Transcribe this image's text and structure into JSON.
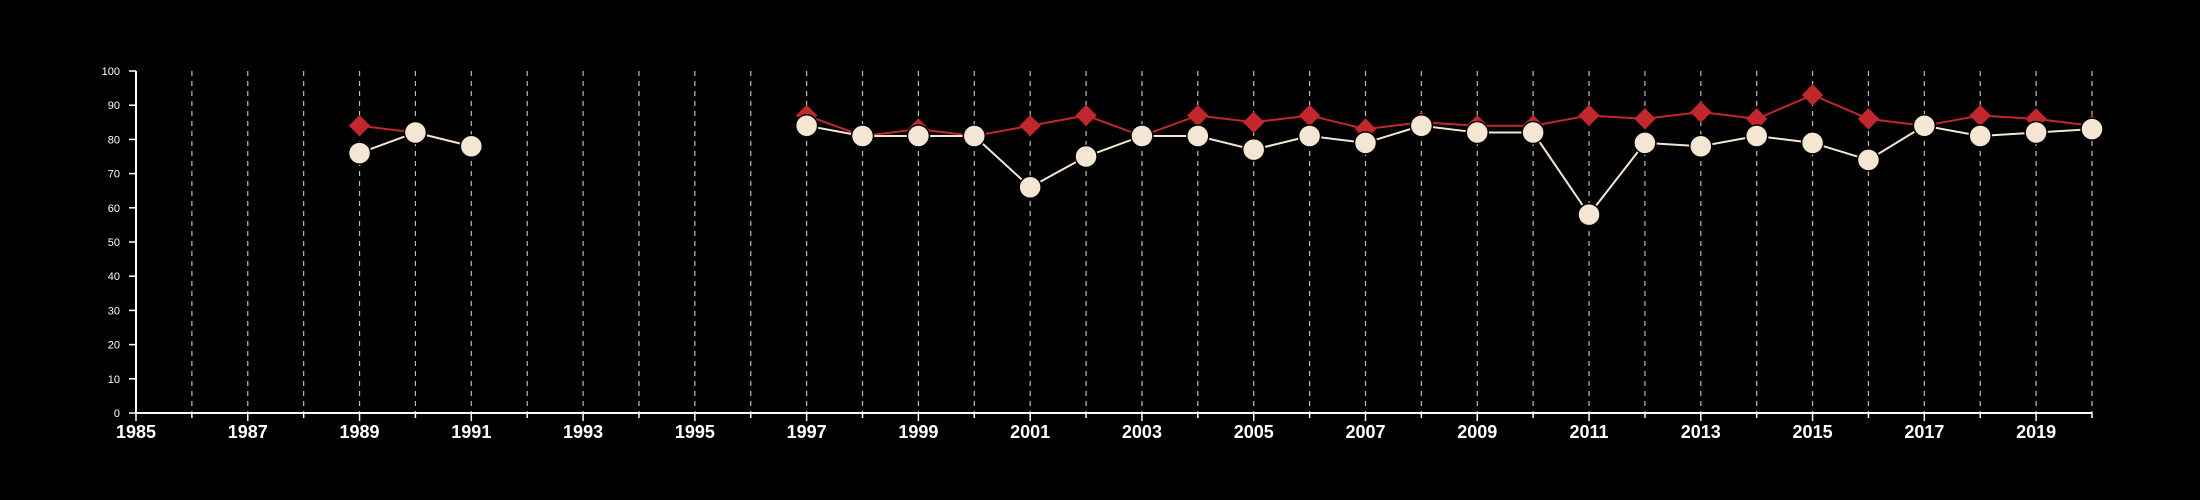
{
  "chart_data": {
    "type": "line",
    "title": "",
    "xlabel": "",
    "ylabel": "",
    "xlim": [
      1985,
      2020
    ],
    "ylim": [
      0,
      100
    ],
    "y_ticks": [
      0,
      10,
      20,
      30,
      40,
      50,
      60,
      70,
      80,
      90,
      100
    ],
    "x_ticks": [
      1985,
      1987,
      1989,
      1991,
      1993,
      1995,
      1997,
      1999,
      2001,
      2003,
      2005,
      2007,
      2009,
      2011,
      2013,
      2015,
      2017,
      2019
    ],
    "grid": "vertical dashed lines at each year",
    "legend": "none",
    "background": "#000000",
    "series": [
      {
        "color": "#c1272d",
        "marker": "diamond",
        "x": [
          1989,
          1990,
          1991,
          null,
          1997,
          1998,
          1999,
          2000,
          2001,
          2002,
          2003,
          2004,
          2005,
          2006,
          2007,
          2008,
          2009,
          2010,
          2011,
          2012,
          2013,
          2014,
          2015,
          2016,
          2017,
          2018,
          2019,
          2020
        ],
        "values": [
          84,
          82,
          78,
          null,
          87,
          81,
          83,
          81,
          84,
          87,
          81,
          87,
          85,
          87,
          83,
          85,
          84,
          84,
          87,
          86,
          88,
          86,
          93,
          86,
          84,
          87,
          86,
          84
        ]
      },
      {
        "color": "#f5e6d3",
        "marker": "circle",
        "x": [
          1989,
          1990,
          1991,
          null,
          1997,
          1998,
          1999,
          2000,
          2001,
          2002,
          2003,
          2004,
          2005,
          2006,
          2007,
          2008,
          2009,
          2010,
          2011,
          2012,
          2013,
          2014,
          2015,
          2016,
          2017,
          2018,
          2019,
          2020
        ],
        "values": [
          76,
          82,
          78,
          null,
          84,
          81,
          81,
          81,
          66,
          75,
          81,
          81,
          77,
          81,
          79,
          84,
          82,
          82,
          58,
          79,
          78,
          81,
          79,
          74,
          84,
          81,
          82,
          83
        ]
      }
    ]
  }
}
